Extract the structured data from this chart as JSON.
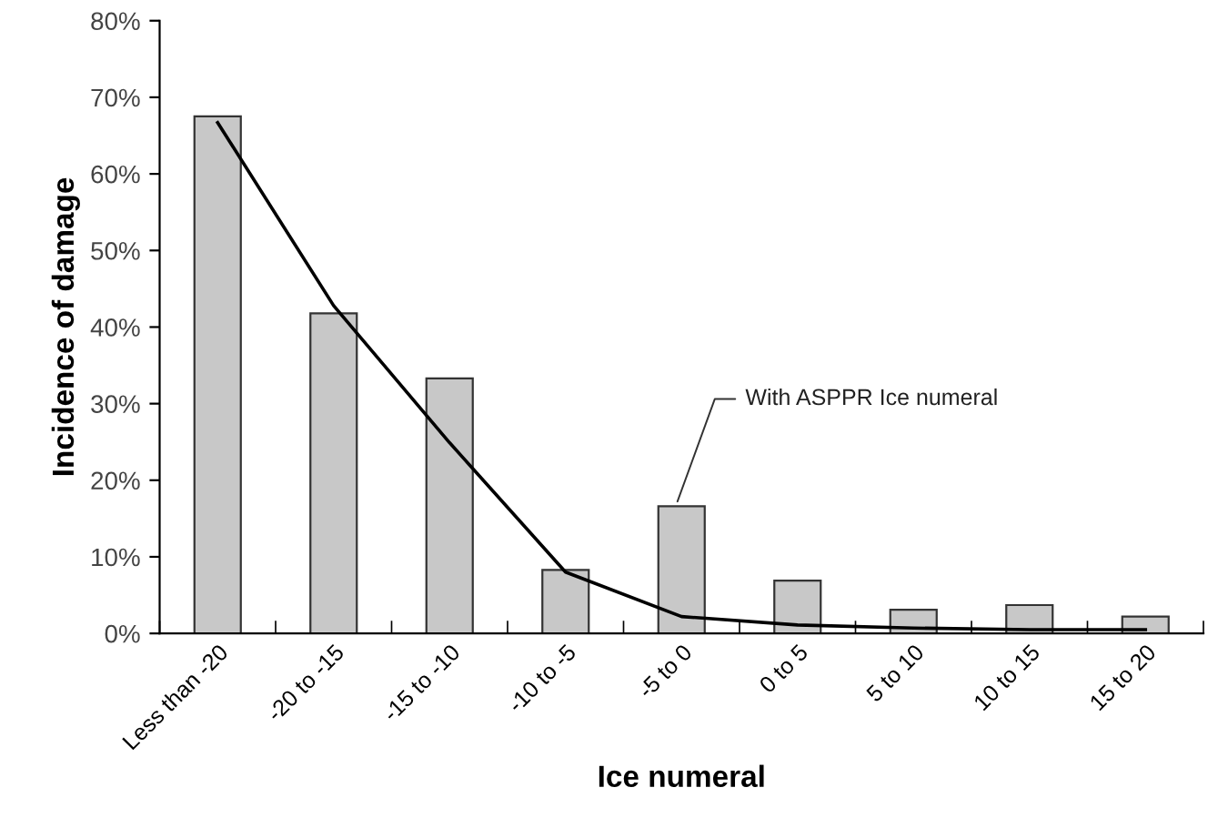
{
  "chart_data": {
    "type": "bar",
    "xlabel": "Ice numeral",
    "ylabel": "Incidence of damage",
    "categories": [
      "Less than -20",
      "-20 to -15",
      "-15 to -10",
      "-10 to -5",
      "-5 to 0",
      "0 to 5",
      "5 to 10",
      "10 to 15",
      "15 to 20"
    ],
    "series": [
      {
        "color": "#c8c8c8",
        "values": [
          67.5,
          41.8,
          33.3,
          8.3,
          16.6,
          6.9,
          3.1,
          3.7,
          2.2
        ]
      },
      {
        "type": "line",
        "color": "#000000",
        "values": [
          66.7,
          42.8,
          24.9,
          8.0,
          2.2,
          1.1,
          0.7,
          0.5,
          0.5
        ]
      }
    ],
    "ylim": [
      0,
      80
    ],
    "yticks": [
      {
        "value": 0,
        "label": "0%"
      },
      {
        "value": 10,
        "label": "10%"
      },
      {
        "value": 20,
        "label": "20%"
      },
      {
        "value": 30,
        "label": "30%"
      },
      {
        "value": 40,
        "label": "40%"
      },
      {
        "value": 50,
        "label": "50%"
      },
      {
        "value": 60,
        "label": "60%"
      },
      {
        "value": 70,
        "label": "70%"
      },
      {
        "value": 80,
        "label": "80%"
      }
    ],
    "annotations": [
      {
        "text": "With ASPPR Ice numeral",
        "x": "-5 to 0",
        "y": 16.6
      }
    ],
    "grid": false,
    "legend": false,
    "marker": "none",
    "line_style": "solid"
  }
}
